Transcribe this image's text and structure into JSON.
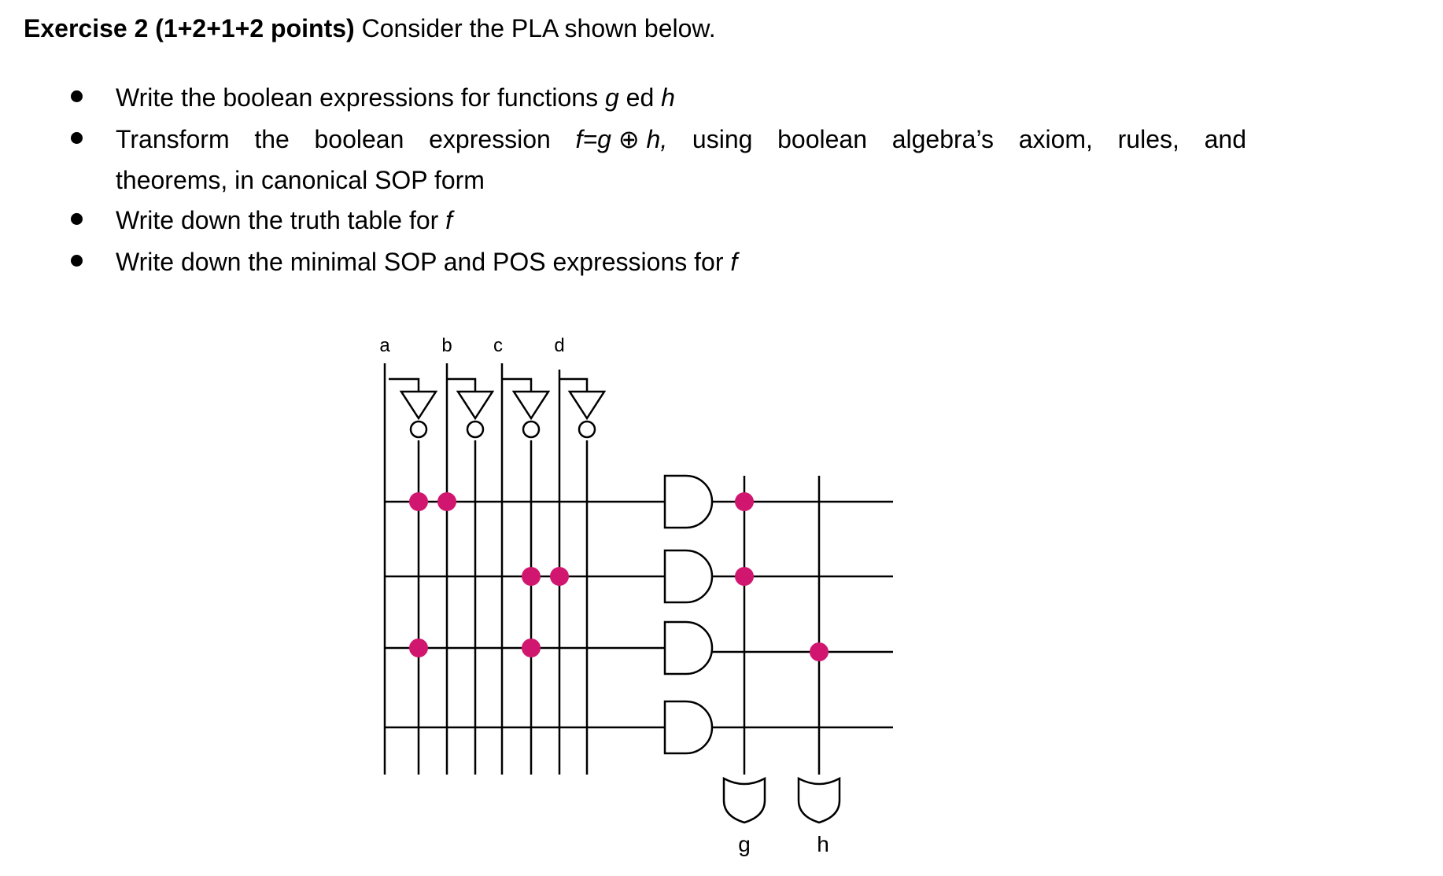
{
  "exercise": {
    "title_bold": "Exercise 2 (1+2+1+2 points)",
    "title_rest": " Consider the PLA shown below."
  },
  "bullets": [
    {
      "pre": "Write the boolean expressions for functions ",
      "v1": "g",
      "mid": " ed ",
      "v2": "h"
    },
    {
      "words": [
        "Transform",
        "the",
        "boolean",
        "expression",
        "f=g ⊕ h,",
        "using",
        "boolean",
        "algebra’s",
        "axiom,",
        "rules,",
        "and"
      ],
      "line2": "theorems, in canonical SOP form"
    },
    {
      "pre": "Write down the truth table for ",
      "v1": "f"
    },
    {
      "pre": "Write down the minimal SOP and POS expressions for ",
      "v1": "f"
    }
  ],
  "pla": {
    "inputs": [
      "a",
      "b",
      "c",
      "d"
    ],
    "outputs": [
      "g",
      "h"
    ],
    "dot_color": "#d0166e"
  }
}
